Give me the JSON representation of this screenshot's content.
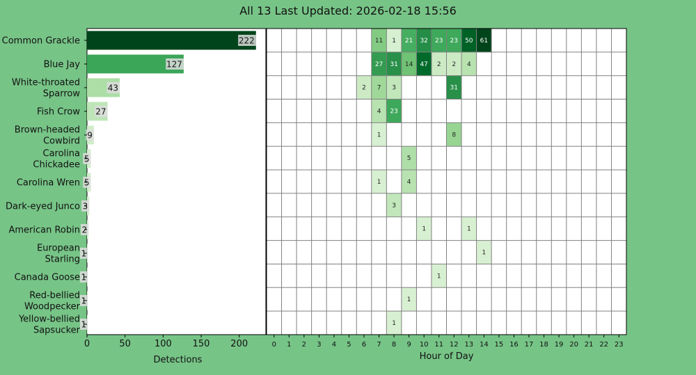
{
  "title": "All 13 Last Updated: 2026-02-18 15:56",
  "colors": {
    "background": "#77c487",
    "panel": "#ffffff",
    "grid": "#808080",
    "current_hour": "#ffff66",
    "bar_label_bg": "#dddddd"
  },
  "current_hour": "15",
  "chart_data": [
    {
      "type": "bar",
      "orientation": "horizontal",
      "categories": [
        "Common Grackle",
        "Blue Jay",
        "White-throated Sparrow",
        "Fish Crow",
        "Brown-headed Cowbird",
        "Carolina Chickadee",
        "Carolina Wren",
        "Dark-eyed Junco",
        "American Robin",
        "European Starling",
        "Canada Goose",
        "Red-bellied Woodpecker",
        "Yellow-bellied Sapsucker"
      ],
      "category_labels": [
        [
          "Common Grackle"
        ],
        [
          "Blue Jay"
        ],
        [
          "White-throated",
          "Sparrow"
        ],
        [
          "Fish Crow"
        ],
        [
          "Brown-headed",
          "Cowbird"
        ],
        [
          "Carolina",
          "Chickadee"
        ],
        [
          "Carolina Wren"
        ],
        [
          "Dark-eyed Junco"
        ],
        [
          "American Robin"
        ],
        [
          "European",
          "Starling"
        ],
        [
          "Canada Goose"
        ],
        [
          "Red-bellied",
          "Woodpecker"
        ],
        [
          "Yellow-bellied",
          "Sapsucker"
        ]
      ],
      "values": [
        222,
        127,
        43,
        27,
        9,
        5,
        5,
        3,
        2,
        1,
        1,
        1,
        1
      ],
      "xlabel": "Detections",
      "xticks": [
        "0",
        "50",
        "100",
        "150",
        "200"
      ],
      "xlim": [
        0,
        235
      ],
      "grid": false,
      "colormap": "Greens"
    },
    {
      "type": "heatmap",
      "xlabel": "Hour of Day",
      "hours": [
        "0",
        "1",
        "2",
        "3",
        "4",
        "5",
        "6",
        "7",
        "8",
        "9",
        "10",
        "11",
        "12",
        "13",
        "14",
        "15",
        "16",
        "17",
        "18",
        "19",
        "20",
        "21",
        "22",
        "23"
      ],
      "rows": [
        {
          "species": "Common Grackle",
          "cells": [
            [
              7,
              11
            ],
            [
              8,
              1
            ],
            [
              9,
              21
            ],
            [
              10,
              32
            ],
            [
              11,
              23
            ],
            [
              12,
              23
            ],
            [
              13,
              50
            ],
            [
              14,
              61
            ]
          ]
        },
        {
          "species": "Blue Jay",
          "cells": [
            [
              7,
              27
            ],
            [
              8,
              31
            ],
            [
              9,
              14
            ],
            [
              10,
              47
            ],
            [
              11,
              2
            ],
            [
              12,
              2
            ],
            [
              13,
              4
            ]
          ]
        },
        {
          "species": "White-throated Sparrow",
          "cells": [
            [
              6,
              2
            ],
            [
              7,
              7
            ],
            [
              8,
              3
            ],
            [
              12,
              31
            ]
          ]
        },
        {
          "species": "Fish Crow",
          "cells": [
            [
              7,
              4
            ],
            [
              8,
              23
            ]
          ]
        },
        {
          "species": "Brown-headed Cowbird",
          "cells": [
            [
              7,
              1
            ],
            [
              12,
              8
            ]
          ]
        },
        {
          "species": "Carolina Chickadee",
          "cells": [
            [
              9,
              5
            ]
          ]
        },
        {
          "species": "Carolina Wren",
          "cells": [
            [
              7,
              1
            ],
            [
              9,
              4
            ]
          ]
        },
        {
          "species": "Dark-eyed Junco",
          "cells": [
            [
              8,
              3
            ]
          ]
        },
        {
          "species": "American Robin",
          "cells": [
            [
              10,
              1
            ],
            [
              13,
              1
            ]
          ]
        },
        {
          "species": "European Starling",
          "cells": [
            [
              14,
              1
            ]
          ]
        },
        {
          "species": "Canada Goose",
          "cells": [
            [
              11,
              1
            ]
          ]
        },
        {
          "species": "Red-bellied Woodpecker",
          "cells": [
            [
              9,
              1
            ]
          ]
        },
        {
          "species": "Yellow-bellied Sapsucker",
          "cells": [
            [
              8,
              1
            ]
          ]
        }
      ],
      "grid": true,
      "colormap": "Greens"
    }
  ]
}
